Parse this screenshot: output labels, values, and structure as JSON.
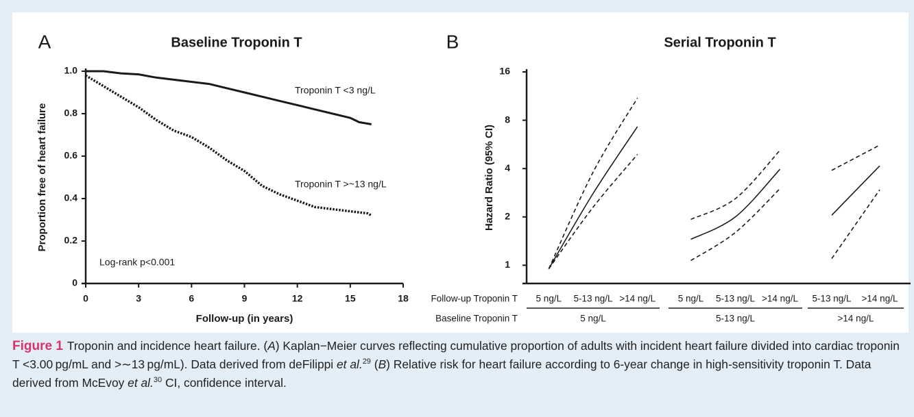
{
  "chart_data": [
    {
      "type": "line",
      "panel_label": "A",
      "title": "Baseline Troponin T",
      "xlabel": "Follow-up (in years)",
      "ylabel": "Proportion free of heart failure",
      "xlim": [
        0,
        18
      ],
      "xticks": [
        0,
        3,
        6,
        9,
        12,
        15,
        18
      ],
      "ylim": [
        0,
        1
      ],
      "yticks": [
        0,
        0.2,
        0.4,
        0.6,
        0.8,
        {
          "value": 1,
          "label": "1.0"
        }
      ],
      "annotation": "Log-rank p<0.001",
      "series": [
        {
          "name": "Troponin T <3 ng/L",
          "color": "#1a1a1a",
          "style": "solid",
          "x": [
            0,
            1,
            2,
            3,
            4,
            5,
            6,
            7,
            8,
            9,
            10,
            11,
            12,
            13,
            14,
            15,
            15.5,
            16.2
          ],
          "values": [
            1.0,
            1.0,
            0.99,
            0.985,
            0.97,
            0.96,
            0.95,
            0.94,
            0.92,
            0.9,
            0.88,
            0.86,
            0.84,
            0.82,
            0.8,
            0.78,
            0.76,
            0.75
          ]
        },
        {
          "name": "Troponin T >~13 ng/L",
          "color": "#1a1a1a",
          "style": "dotted",
          "x": [
            0,
            1,
            2,
            3,
            4,
            5,
            6,
            7,
            8,
            9,
            10,
            11,
            12,
            13,
            14,
            15,
            16,
            16.2
          ],
          "values": [
            0.98,
            0.93,
            0.88,
            0.83,
            0.77,
            0.72,
            0.69,
            0.64,
            0.58,
            0.53,
            0.46,
            0.42,
            0.39,
            0.36,
            0.35,
            0.34,
            0.33,
            0.32
          ]
        }
      ]
    },
    {
      "type": "line",
      "panel_label": "B",
      "title": "Serial Troponin T",
      "ylabel": "Hazard Ratio (95% CI)",
      "log_scale": true,
      "ylim": [
        0.77,
        16
      ],
      "yticks": [
        1,
        2,
        4,
        8,
        16
      ],
      "color": "#1a1a1a",
      "row_labels": [
        "Follow-up Troponin T",
        "Baseline Troponin T"
      ],
      "groups": [
        {
          "label": "5 ng/L",
          "categories": [
            "5 ng/L",
            "5-13 ng/L",
            ">14 ng/L"
          ],
          "estimate": [
            0.95,
            2.8,
            7.3
          ],
          "lower": [
            0.95,
            2.3,
            4.9
          ],
          "upper": [
            0.95,
            3.8,
            11
          ]
        },
        {
          "label": "5-13 ng/L",
          "categories": [
            "5 ng/L",
            "5-13 ng/L",
            ">14 ng/L"
          ],
          "estimate": [
            1.45,
            2.0,
            3.96
          ],
          "lower": [
            1.07,
            1.6,
            3.0
          ],
          "upper": [
            1.93,
            2.6,
            5.2
          ]
        },
        {
          "label": ">14 ng/L",
          "categories": [
            "5-13 ng/L",
            ">14 ng/L"
          ],
          "estimate": [
            2.05,
            4.16
          ],
          "lower": [
            1.1,
            2.95
          ],
          "upper": [
            3.9,
            5.6
          ]
        }
      ]
    }
  ],
  "caption": {
    "label": "Figure 1",
    "parts": [
      "Troponin and incidence heart failure. (",
      "A",
      ") Kaplan−Meier curves reflecting cumulative proportion of adults with incident heart failure divided into cardiac troponin T <3.00 pg/mL and >∼13 pg/mL). Data derived from deFilippi ",
      "et al.",
      "29",
      " (",
      "B",
      ") Relative risk for heart failure according to 6-year change in high-sensitivity troponin T. Data derived from McEvoy ",
      "et al.",
      "30",
      " CI, confidence interval."
    ]
  }
}
